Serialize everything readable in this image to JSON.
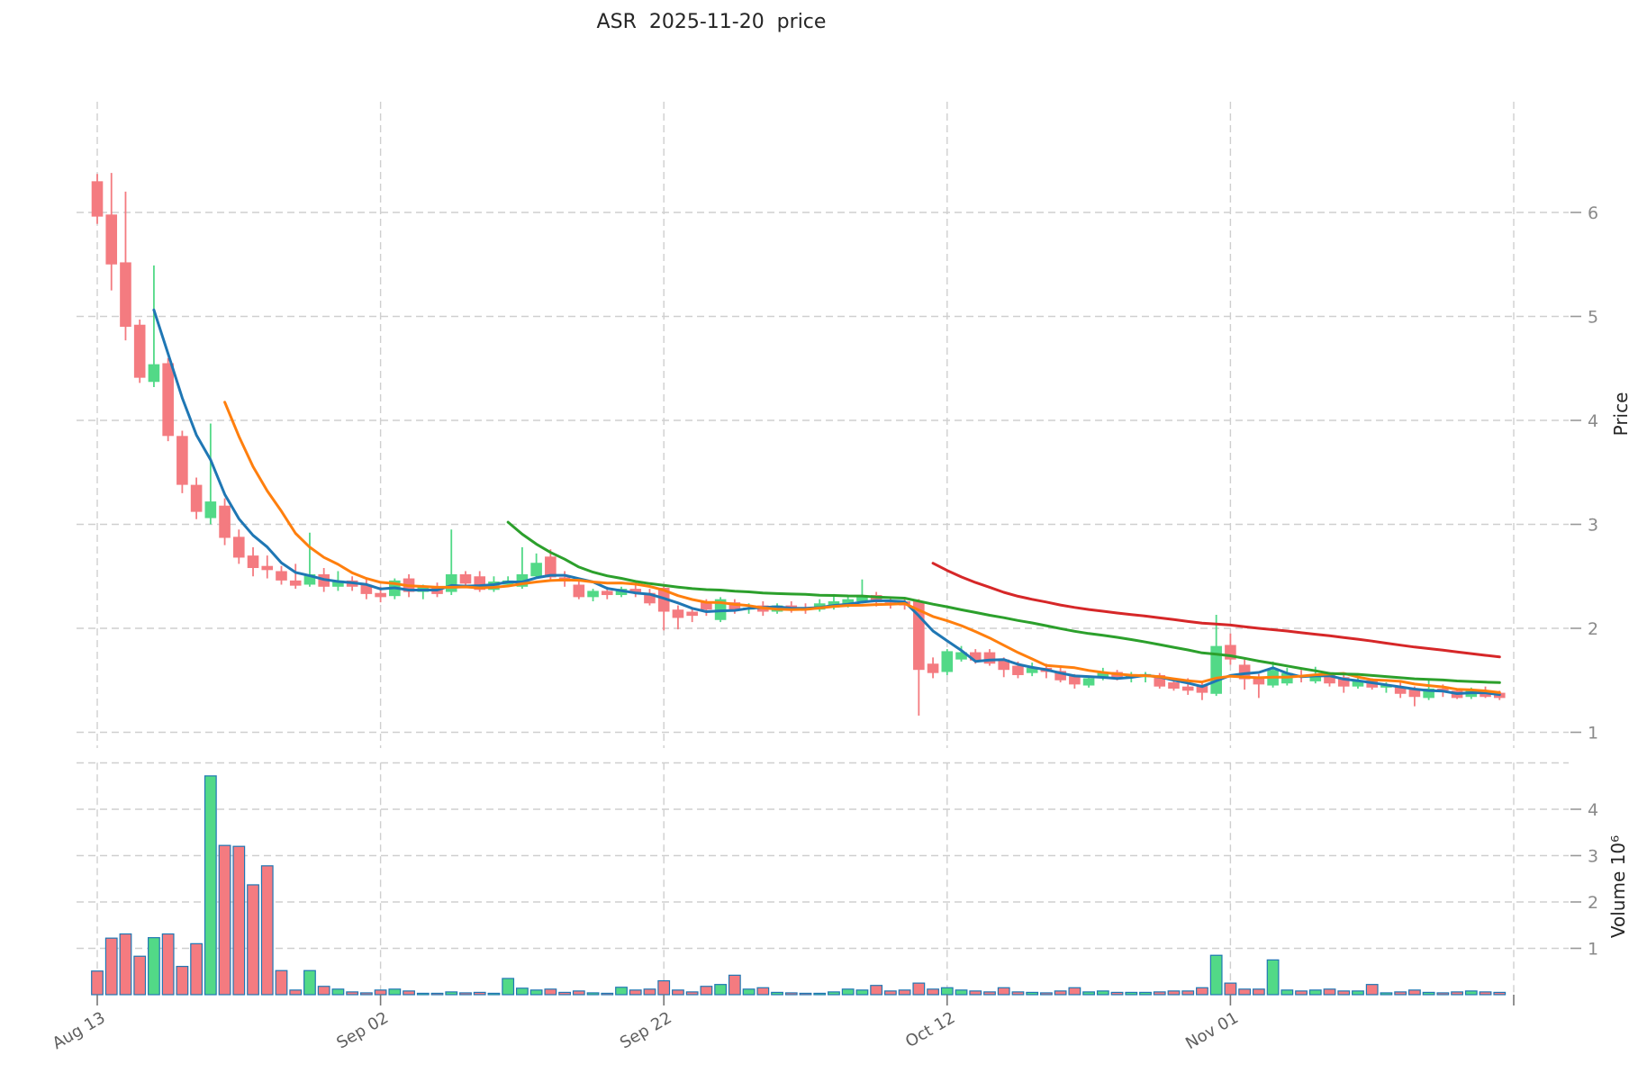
{
  "title": "ASR  2025-11-20  price",
  "chart_data": {
    "type": "candlestick",
    "title": "ASR  2025-11-20  price",
    "grid": true,
    "legend_position": "none",
    "x_ticks": {
      "labels": [
        "Aug 13",
        "Sep 02",
        "Sep 22",
        "Oct 12",
        "Nov 01",
        ""
      ],
      "day_indices": [
        0,
        20,
        40,
        60,
        80,
        100
      ]
    },
    "price_axis": {
      "label": "Price",
      "ticks": [
        6,
        5,
        4,
        3,
        2,
        1
      ],
      "range": [
        0.85,
        7.05
      ]
    },
    "volume_axis": {
      "label": "Volume 10⁶",
      "ticks": [
        4,
        3,
        2,
        1
      ],
      "range": [
        0,
        5
      ],
      "unit_multiplier": 1000000
    },
    "moving_averages": [
      {
        "name": "SMA5",
        "window": 5,
        "color": "#1f77b4"
      },
      {
        "name": "SMA10",
        "window": 10,
        "color": "#ff7f0e"
      },
      {
        "name": "SMA30",
        "window": 30,
        "color": "#2ca02c"
      },
      {
        "name": "SMA60",
        "window": 60,
        "color": "#d62728"
      }
    ],
    "colors": {
      "up": "#52d987",
      "down": "#f47b80",
      "volume_edge": "#2077b4",
      "grid": "#cfcfcf",
      "tick_label": "#8a8a8a",
      "date_label": "#5f5f5f",
      "axis_title": "#262626"
    },
    "series_format": [
      "open",
      "high",
      "low",
      "close",
      "volume_millions"
    ],
    "ohlcv": [
      [
        6.3,
        6.37,
        5.89,
        5.96,
        0.51
      ],
      [
        5.98,
        6.38,
        5.25,
        5.5,
        1.22
      ],
      [
        5.52,
        6.2,
        4.77,
        4.9,
        1.31
      ],
      [
        4.92,
        4.97,
        4.36,
        4.41,
        0.83
      ],
      [
        4.37,
        5.49,
        4.32,
        4.54,
        1.23
      ],
      [
        4.55,
        4.6,
        3.8,
        3.85,
        1.31
      ],
      [
        3.85,
        3.9,
        3.3,
        3.38,
        0.61
      ],
      [
        3.38,
        3.45,
        3.05,
        3.12,
        1.1
      ],
      [
        3.06,
        3.97,
        3.0,
        3.22,
        4.72
      ],
      [
        3.18,
        3.25,
        2.8,
        2.87,
        3.22
      ],
      [
        2.88,
        2.95,
        2.62,
        2.68,
        3.2
      ],
      [
        2.7,
        2.78,
        2.5,
        2.58,
        2.37
      ],
      [
        2.6,
        2.7,
        2.48,
        2.56,
        2.78
      ],
      [
        2.55,
        2.6,
        2.42,
        2.46,
        0.52
      ],
      [
        2.46,
        2.62,
        2.38,
        2.41,
        0.1
      ],
      [
        2.42,
        2.92,
        2.4,
        2.52,
        0.52
      ],
      [
        2.52,
        2.58,
        2.35,
        2.4,
        0.18
      ],
      [
        2.4,
        2.55,
        2.36,
        2.46,
        0.12
      ],
      [
        2.46,
        2.5,
        2.36,
        2.4,
        0.06
      ],
      [
        2.42,
        2.48,
        2.28,
        2.33,
        0.04
      ],
      [
        2.34,
        2.4,
        2.25,
        2.3,
        0.1
      ],
      [
        2.31,
        2.48,
        2.28,
        2.46,
        0.12
      ],
      [
        2.48,
        2.52,
        2.3,
        2.35,
        0.08
      ],
      [
        2.35,
        2.42,
        2.28,
        2.4,
        0.03
      ],
      [
        2.4,
        2.44,
        2.3,
        2.33,
        0.03
      ],
      [
        2.35,
        2.95,
        2.32,
        2.52,
        0.06
      ],
      [
        2.52,
        2.55,
        2.4,
        2.43,
        0.04
      ],
      [
        2.5,
        2.55,
        2.35,
        2.37,
        0.05
      ],
      [
        2.37,
        2.5,
        2.35,
        2.45,
        0.03
      ],
      [
        2.42,
        2.5,
        2.4,
        2.46,
        0.35
      ],
      [
        2.4,
        2.78,
        2.38,
        2.52,
        0.14
      ],
      [
        2.5,
        2.72,
        2.48,
        2.63,
        0.1
      ],
      [
        2.69,
        2.76,
        2.45,
        2.49,
        0.12
      ],
      [
        2.49,
        2.55,
        2.4,
        2.45,
        0.05
      ],
      [
        2.42,
        2.46,
        2.28,
        2.3,
        0.08
      ],
      [
        2.3,
        2.38,
        2.26,
        2.36,
        0.04
      ],
      [
        2.36,
        2.4,
        2.28,
        2.32,
        0.03
      ],
      [
        2.32,
        2.4,
        2.3,
        2.38,
        0.16
      ],
      [
        2.38,
        2.42,
        2.3,
        2.34,
        0.1
      ],
      [
        2.34,
        2.38,
        2.22,
        2.24,
        0.12
      ],
      [
        2.39,
        2.41,
        1.98,
        2.16,
        0.3
      ],
      [
        2.18,
        2.22,
        1.99,
        2.1,
        0.1
      ],
      [
        2.16,
        2.2,
        2.06,
        2.12,
        0.06
      ],
      [
        2.25,
        2.28,
        2.12,
        2.18,
        0.18
      ],
      [
        2.08,
        2.3,
        2.06,
        2.28,
        0.22
      ],
      [
        2.25,
        2.28,
        2.14,
        2.18,
        0.42
      ],
      [
        2.18,
        2.24,
        2.14,
        2.2,
        0.12
      ],
      [
        2.22,
        2.26,
        2.12,
        2.16,
        0.15
      ],
      [
        2.16,
        2.24,
        2.14,
        2.22,
        0.05
      ],
      [
        2.22,
        2.26,
        2.15,
        2.2,
        0.04
      ],
      [
        2.2,
        2.24,
        2.14,
        2.18,
        0.03
      ],
      [
        2.18,
        2.28,
        2.16,
        2.24,
        0.03
      ],
      [
        2.2,
        2.33,
        2.18,
        2.26,
        0.06
      ],
      [
        2.22,
        2.3,
        2.2,
        2.28,
        0.12
      ],
      [
        2.26,
        2.47,
        2.24,
        2.3,
        0.1
      ],
      [
        2.32,
        2.35,
        2.21,
        2.25,
        0.2
      ],
      [
        2.25,
        2.3,
        2.19,
        2.23,
        0.08
      ],
      [
        2.26,
        2.3,
        2.18,
        2.22,
        0.1
      ],
      [
        2.26,
        2.28,
        1.16,
        1.6,
        0.25
      ],
      [
        1.66,
        1.72,
        1.52,
        1.57,
        0.12
      ],
      [
        1.58,
        1.8,
        1.55,
        1.78,
        0.15
      ],
      [
        1.7,
        1.83,
        1.68,
        1.77,
        0.1
      ],
      [
        1.77,
        1.8,
        1.66,
        1.69,
        0.08
      ],
      [
        1.77,
        1.8,
        1.64,
        1.66,
        0.06
      ],
      [
        1.7,
        1.72,
        1.53,
        1.6,
        0.15
      ],
      [
        1.64,
        1.68,
        1.52,
        1.55,
        0.06
      ],
      [
        1.57,
        1.67,
        1.54,
        1.62,
        0.05
      ],
      [
        1.62,
        1.66,
        1.52,
        1.58,
        0.04
      ],
      [
        1.59,
        1.62,
        1.48,
        1.5,
        0.08
      ],
      [
        1.54,
        1.56,
        1.42,
        1.46,
        0.15
      ],
      [
        1.45,
        1.54,
        1.43,
        1.52,
        0.06
      ],
      [
        1.52,
        1.62,
        1.5,
        1.58,
        0.08
      ],
      [
        1.58,
        1.6,
        1.5,
        1.53,
        0.05
      ],
      [
        1.53,
        1.58,
        1.48,
        1.55,
        0.05
      ],
      [
        1.53,
        1.58,
        1.48,
        1.56,
        0.05
      ],
      [
        1.55,
        1.57,
        1.42,
        1.44,
        0.06
      ],
      [
        1.48,
        1.52,
        1.4,
        1.42,
        0.08
      ],
      [
        1.44,
        1.52,
        1.36,
        1.4,
        0.08
      ],
      [
        1.46,
        1.48,
        1.31,
        1.38,
        0.15
      ],
      [
        1.37,
        2.13,
        1.35,
        1.83,
        0.85
      ],
      [
        1.84,
        1.95,
        1.65,
        1.7,
        0.25
      ],
      [
        1.65,
        1.7,
        1.41,
        1.51,
        0.12
      ],
      [
        1.53,
        1.56,
        1.33,
        1.46,
        0.12
      ],
      [
        1.45,
        1.68,
        1.43,
        1.6,
        0.75
      ],
      [
        1.47,
        1.62,
        1.45,
        1.57,
        0.1
      ],
      [
        1.55,
        1.6,
        1.48,
        1.53,
        0.08
      ],
      [
        1.49,
        1.63,
        1.47,
        1.55,
        0.1
      ],
      [
        1.55,
        1.58,
        1.44,
        1.47,
        0.12
      ],
      [
        1.53,
        1.55,
        1.38,
        1.44,
        0.08
      ],
      [
        1.44,
        1.52,
        1.42,
        1.49,
        0.08
      ],
      [
        1.5,
        1.52,
        1.41,
        1.43,
        0.22
      ],
      [
        1.43,
        1.48,
        1.38,
        1.45,
        0.04
      ],
      [
        1.44,
        1.5,
        1.33,
        1.37,
        0.06
      ],
      [
        1.42,
        1.44,
        1.25,
        1.34,
        0.1
      ],
      [
        1.33,
        1.5,
        1.31,
        1.42,
        0.05
      ],
      [
        1.42,
        1.46,
        1.34,
        1.4,
        0.04
      ],
      [
        1.4,
        1.42,
        1.32,
        1.33,
        0.06
      ],
      [
        1.34,
        1.43,
        1.32,
        1.41,
        0.08
      ],
      [
        1.4,
        1.44,
        1.33,
        1.34,
        0.06
      ],
      [
        1.38,
        1.4,
        1.31,
        1.33,
        0.05
      ]
    ]
  }
}
